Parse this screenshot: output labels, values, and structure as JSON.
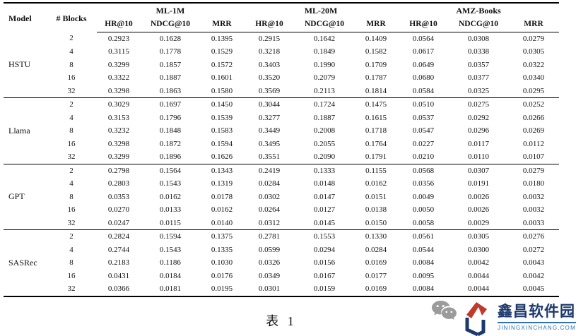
{
  "table": {
    "model_header": "Model",
    "blocks_header": "# Blocks",
    "datasets": [
      "ML-1M",
      "ML-20M",
      "AMZ-Books"
    ],
    "metrics": [
      "HR@10",
      "NDCG@10",
      "MRR"
    ],
    "groups": [
      {
        "model": "HSTU",
        "rows": [
          {
            "blocks": "2",
            "values": [
              "0.2923",
              "0.1628",
              "0.1395",
              "0.2915",
              "0.1642",
              "0.1409",
              "0.0564",
              "0.0308",
              "0.0279"
            ]
          },
          {
            "blocks": "4",
            "values": [
              "0.3115",
              "0.1778",
              "0.1529",
              "0.3218",
              "0.1849",
              "0.1582",
              "0.0617",
              "0.0338",
              "0.0305"
            ]
          },
          {
            "blocks": "8",
            "values": [
              "0.3299",
              "0.1857",
              "0.1572",
              "0.3403",
              "0.1990",
              "0.1709",
              "0.0649",
              "0.0357",
              "0.0322"
            ]
          },
          {
            "blocks": "16",
            "values": [
              "0.3322",
              "0.1887",
              "0.1601",
              "0.3520",
              "0.2079",
              "0.1787",
              "0.0680",
              "0.0377",
              "0.0340"
            ]
          },
          {
            "blocks": "32",
            "values": [
              "0.3298",
              "0.1863",
              "0.1580",
              "0.3569",
              "0.2113",
              "0.1814",
              "0.0584",
              "0.0325",
              "0.0295"
            ]
          }
        ]
      },
      {
        "model": "Llama",
        "rows": [
          {
            "blocks": "2",
            "values": [
              "0.3029",
              "0.1697",
              "0.1450",
              "0.3044",
              "0.1724",
              "0.1475",
              "0.0510",
              "0.0275",
              "0.0252"
            ]
          },
          {
            "blocks": "4",
            "values": [
              "0.3153",
              "0.1796",
              "0.1539",
              "0.3277",
              "0.1887",
              "0.1615",
              "0.0537",
              "0.0292",
              "0.0266"
            ]
          },
          {
            "blocks": "8",
            "values": [
              "0.3232",
              "0.1848",
              "0.1583",
              "0.3449",
              "0.2008",
              "0.1718",
              "0.0547",
              "0.0296",
              "0.0269"
            ]
          },
          {
            "blocks": "16",
            "values": [
              "0.3298",
              "0.1872",
              "0.1594",
              "0.3495",
              "0.2055",
              "0.1764",
              "0.0227",
              "0.0117",
              "0.0112"
            ]
          },
          {
            "blocks": "32",
            "values": [
              "0.3299",
              "0.1896",
              "0.1626",
              "0.3551",
              "0.2090",
              "0.1791",
              "0.0210",
              "0.0110",
              "0.0107"
            ]
          }
        ]
      },
      {
        "model": "GPT",
        "rows": [
          {
            "blocks": "2",
            "values": [
              "0.2798",
              "0.1564",
              "0.1343",
              "0.2419",
              "0.1333",
              "0.1155",
              "0.0568",
              "0.0307",
              "0.0279"
            ]
          },
          {
            "blocks": "4",
            "values": [
              "0.2803",
              "0.1543",
              "0.1319",
              "0.0284",
              "0.0148",
              "0.0162",
              "0.0356",
              "0.0191",
              "0.0180"
            ]
          },
          {
            "blocks": "8",
            "values": [
              "0.0353",
              "0.0162",
              "0.0178",
              "0.0302",
              "0.0147",
              "0.0151",
              "0.0049",
              "0.0026",
              "0.0032"
            ]
          },
          {
            "blocks": "16",
            "values": [
              "0.0270",
              "0.0133",
              "0.0162",
              "0.0264",
              "0.0127",
              "0.0138",
              "0.0050",
              "0.0026",
              "0.0032"
            ]
          },
          {
            "blocks": "32",
            "values": [
              "0.0247",
              "0.0115",
              "0.0140",
              "0.0312",
              "0.0145",
              "0.0150",
              "0.0058",
              "0.0029",
              "0.0033"
            ]
          }
        ]
      },
      {
        "model": "SASRec",
        "rows": [
          {
            "blocks": "2",
            "values": [
              "0.2824",
              "0.1594",
              "0.1375",
              "0.2781",
              "0.1553",
              "0.1330",
              "0.0561",
              "0.0305",
              "0.0276"
            ]
          },
          {
            "blocks": "4",
            "values": [
              "0.2744",
              "0.1543",
              "0.1335",
              "0.0599",
              "0.0294",
              "0.0284",
              "0.0544",
              "0.0300",
              "0.0272"
            ]
          },
          {
            "blocks": "8",
            "values": [
              "0.2183",
              "0.1186",
              "0.1030",
              "0.0326",
              "0.0156",
              "0.0169",
              "0.0084",
              "0.0042",
              "0.0043"
            ]
          },
          {
            "blocks": "16",
            "values": [
              "0.0431",
              "0.0184",
              "0.0176",
              "0.0349",
              "0.0167",
              "0.0177",
              "0.0095",
              "0.0044",
              "0.0042"
            ]
          },
          {
            "blocks": "32",
            "values": [
              "0.0366",
              "0.0181",
              "0.0195",
              "0.0301",
              "0.0159",
              "0.0169",
              "0.0084",
              "0.0044",
              "0.0045"
            ]
          }
        ]
      }
    ]
  },
  "caption": "表 1",
  "watermark": {
    "wechat_icon": "wechat-icon",
    "site_name": "鑫昌软件园",
    "site_domain": "JININGXINCHANG.COM",
    "colors": {
      "navy": "#1c3a6c",
      "red": "#c0392b",
      "blue": "#2f72b8",
      "grey": "#9b9b9b"
    }
  }
}
